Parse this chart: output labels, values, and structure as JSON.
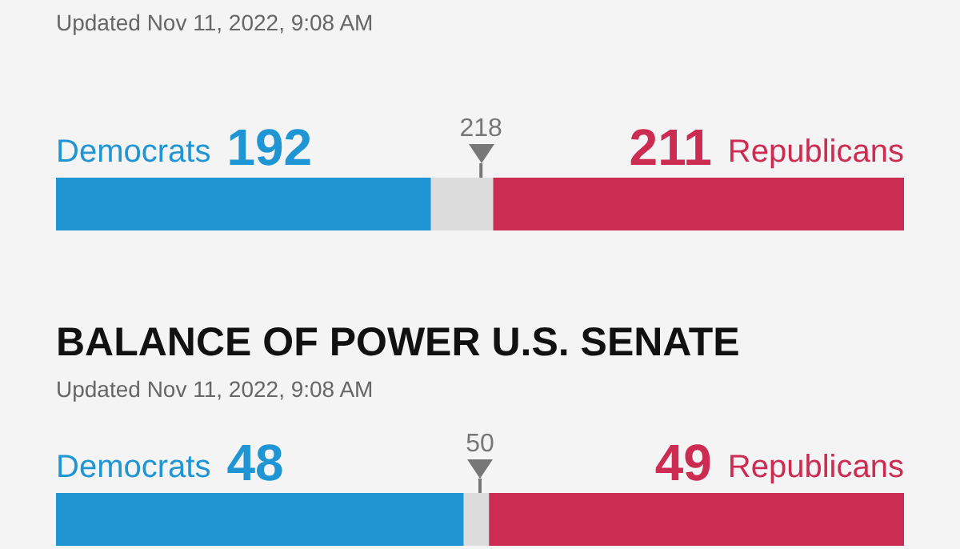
{
  "chart_data": [
    {
      "type": "bar",
      "subtitle": "Updated Nov 11, 2022, 9:08 AM",
      "orientation": "horizontal",
      "stacked": true,
      "categories": [
        null
      ],
      "xlim": [
        0,
        435
      ],
      "tick_labels": false,
      "legend": false,
      "series": [
        {
          "name": "Democrats",
          "color": "#1f95d4",
          "values": [
            192
          ],
          "value_labels": [
            "192"
          ]
        },
        {
          "color": "#dcdcdc",
          "values": [
            32
          ]
        },
        {
          "name": "Republicans",
          "color": "#cc2c52",
          "values": [
            211
          ],
          "value_labels": [
            "211"
          ]
        }
      ],
      "ref_lines": [
        {
          "axis": "x",
          "value": 218,
          "label": "218",
          "color": "#777777"
        }
      ]
    },
    {
      "type": "bar",
      "title": "BALANCE OF POWER U.S. SENATE",
      "subtitle": "Updated Nov 11, 2022, 9:08 AM",
      "orientation": "horizontal",
      "stacked": true,
      "categories": [
        null
      ],
      "xlim": [
        0,
        100
      ],
      "tick_labels": false,
      "legend": false,
      "series": [
        {
          "name": "Democrats",
          "color": "#1f95d4",
          "values": [
            48
          ],
          "value_labels": [
            "48"
          ]
        },
        {
          "color": "#dcdcdc",
          "values": [
            3
          ]
        },
        {
          "name": "Republicans",
          "color": "#cc2c52",
          "values": [
            49
          ],
          "value_labels": [
            "49"
          ]
        }
      ],
      "ref_lines": [
        {
          "axis": "x",
          "value": 50,
          "label": "50",
          "color": "#777777"
        }
      ]
    }
  ]
}
